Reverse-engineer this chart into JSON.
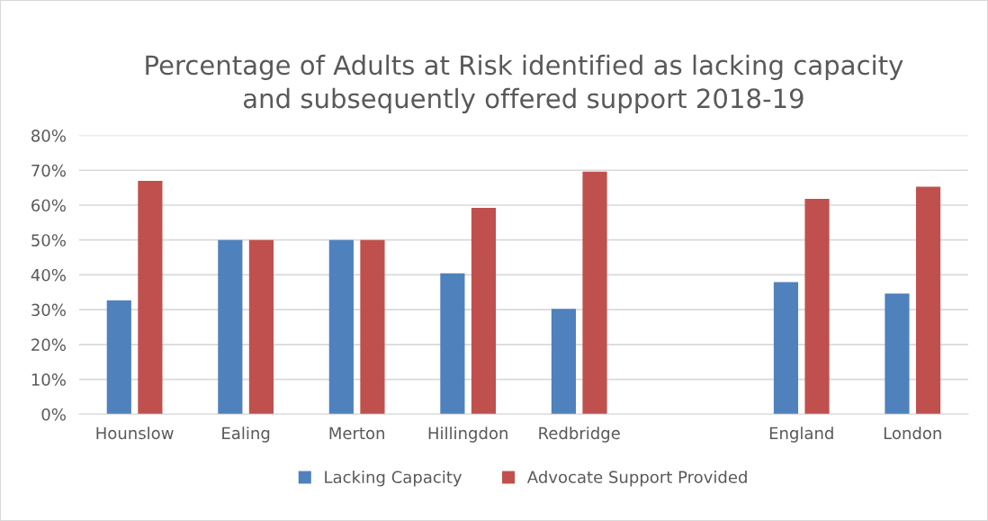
{
  "chart_data": {
    "type": "bar",
    "title": "Percentage of Adults at Risk identified as lacking capacity\nand subsequently offered support 2018-19",
    "categories": [
      "Hounslow",
      "Ealing",
      "Merton",
      "Hillingdon",
      "Redbridge",
      null,
      "England",
      "London"
    ],
    "series": [
      {
        "name": "Lacking Capacity",
        "color": "#4f81bd",
        "values": [
          32.7,
          50,
          50,
          40.4,
          30.2,
          null,
          37.9,
          34.6
        ]
      },
      {
        "name": "Advocate Support Provided",
        "color": "#c0504d",
        "values": [
          67,
          50,
          50,
          59.2,
          69.6,
          null,
          61.8,
          65.3
        ]
      }
    ],
    "ylim": [
      0,
      80
    ],
    "yticks": [
      {
        "value": 0,
        "label": "0%"
      },
      {
        "value": 10,
        "label": "10%"
      },
      {
        "value": 20,
        "label": "20%"
      },
      {
        "value": 30,
        "label": "30%"
      },
      {
        "value": 40,
        "label": "40%"
      },
      {
        "value": 50,
        "label": "50%"
      },
      {
        "value": 60,
        "label": "60%"
      },
      {
        "value": 70,
        "label": "70%"
      },
      {
        "value": 80,
        "label": "80%"
      }
    ],
    "grid": "y",
    "legend": "bottom"
  }
}
